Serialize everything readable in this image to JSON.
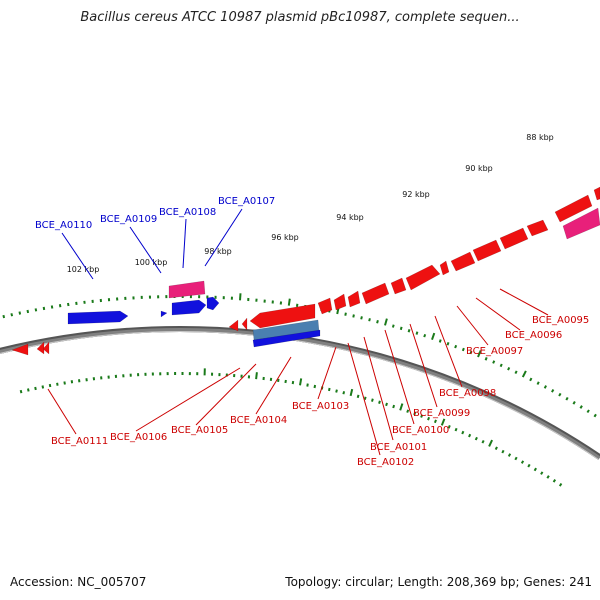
{
  "title": "Bacillus cereus ATCC 10987 plasmid pBc10987, complete sequen...",
  "footer": {
    "accession": "Accession: NC_005707",
    "topology": "Topology: circular; Length: 208,369 bp; Genes: 241"
  },
  "colors": {
    "forward_gene": "#ee1111",
    "reverse_gene": "#1111dd",
    "forward_pseudo": "#e8207a",
    "reverse_pseudo": "#4a7fb0",
    "forward_label": "#cc0000",
    "reverse_label": "#0000cc",
    "backbone": "#808080",
    "ticks": "#1a7a1a"
  },
  "scale_ticks": [
    "88 kbp",
    "90 kbp",
    "92 kbp",
    "94 kbp",
    "96 kbp",
    "98 kbp",
    "100 kbp",
    "102 kbp"
  ],
  "genes_reverse": [
    "BCE_A0110",
    "BCE_A0109",
    "BCE_A0108",
    "BCE_A0107"
  ],
  "genes_forward": [
    "BCE_A0095",
    "BCE_A0096",
    "BCE_A0097",
    "BCE_A0098",
    "BCE_A0099",
    "BCE_A0100",
    "BCE_A0101",
    "BCE_A0102",
    "BCE_A0103",
    "BCE_A0104",
    "BCE_A0105",
    "BCE_A0106",
    "BCE_A0111"
  ]
}
